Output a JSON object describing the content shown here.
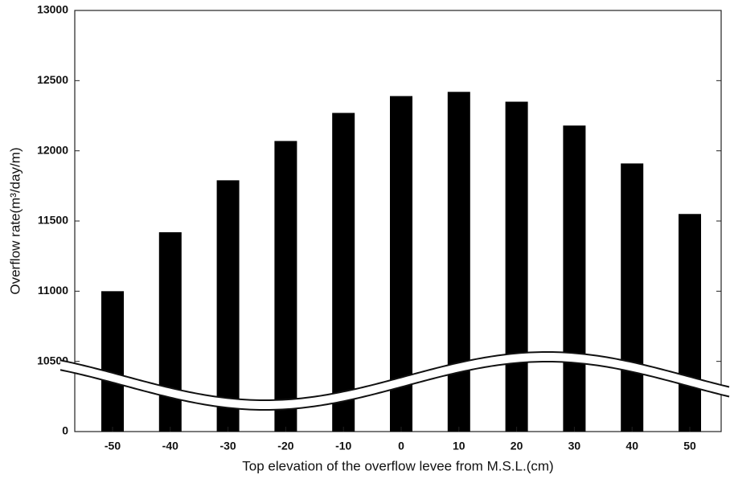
{
  "chart_data": {
    "type": "bar",
    "x_label": "Top elevation of the overflow levee from M.S.L.(cm)",
    "y_label": "Overflow rate(m³/day/m)",
    "categories": [
      "-50",
      "-40",
      "-30",
      "-20",
      "-10",
      "0",
      "10",
      "20",
      "30",
      "40",
      "50"
    ],
    "values": [
      11000,
      11420,
      11790,
      12070,
      12270,
      12390,
      12420,
      12350,
      12180,
      11910,
      11550
    ],
    "color": "#000000",
    "ylim": [
      0,
      13000
    ],
    "y_break": [
      0,
      10000
    ],
    "yticks": [
      0,
      10500,
      11000,
      11500,
      12000,
      12500,
      13000
    ]
  }
}
